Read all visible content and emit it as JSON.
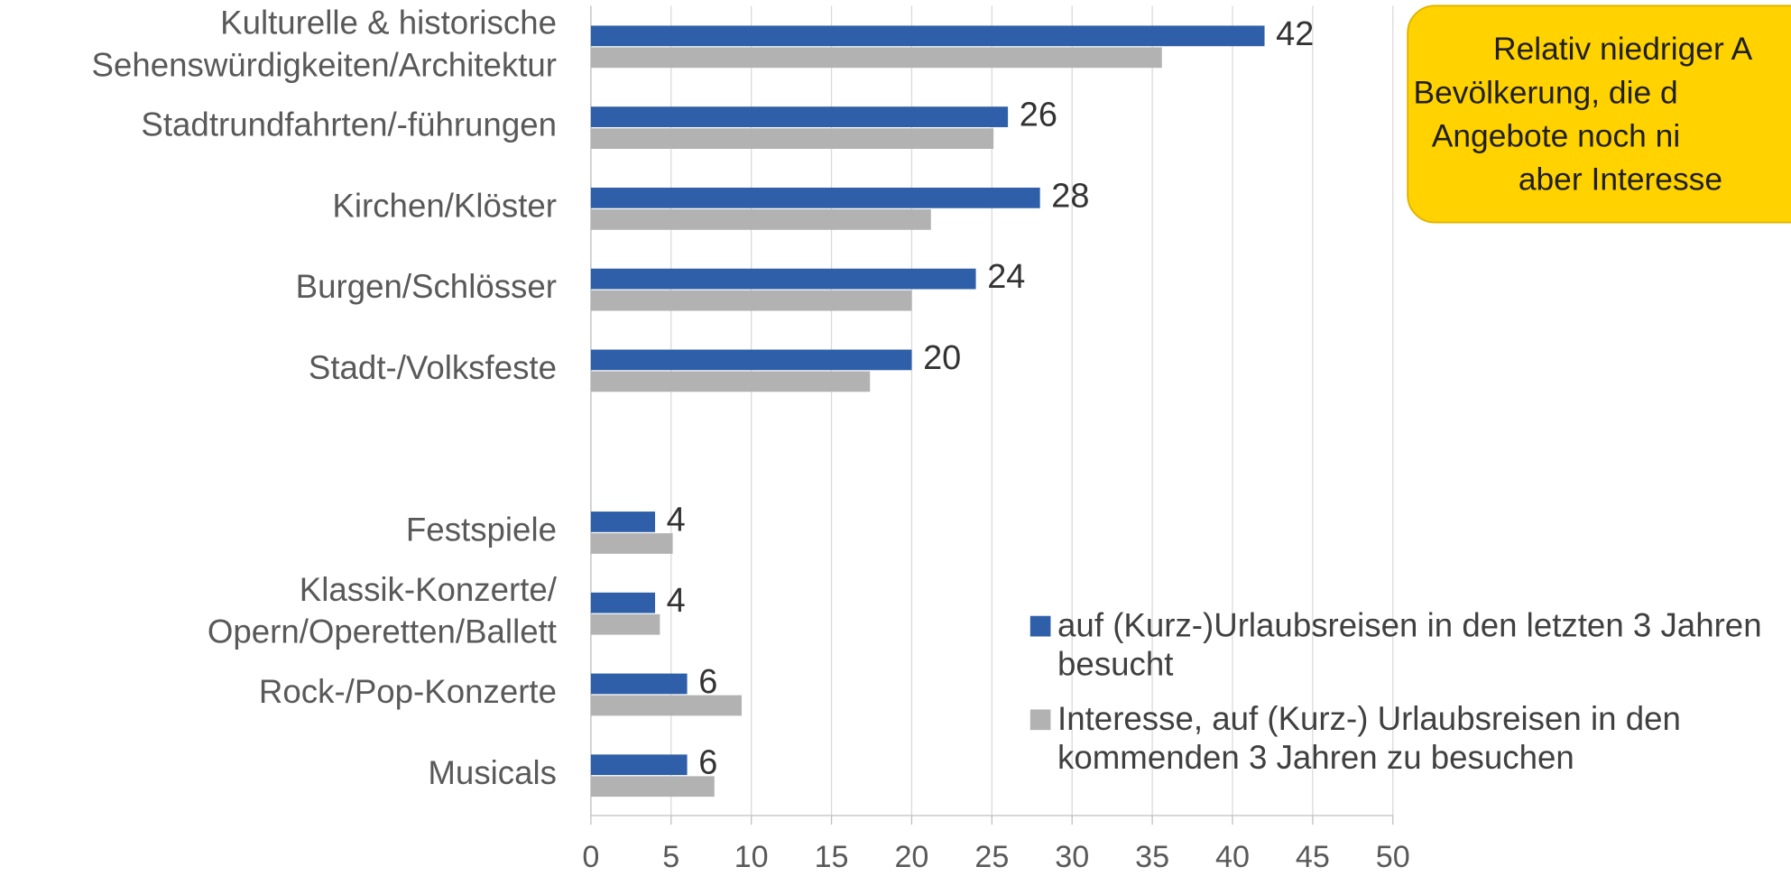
{
  "chart_data": {
    "type": "bar",
    "orientation": "horizontal",
    "categories": [
      [
        "Kulturelle & historische",
        "Sehenswürdigkeiten/Architektur"
      ],
      "Stadtrundfahrten/-führungen",
      "Kirchen/Klöster",
      "Burgen/Schlösser",
      "Stadt-/Volksfeste",
      null,
      "Festspiele",
      [
        "Klassik-Konzerte/",
        "Opern/Operetten/Ballett"
      ],
      "Rock-/Pop-Konzerte",
      "Musicals"
    ],
    "series": [
      {
        "name": "auf (Kurz-)Urlaubsreisen in den letzten 3 Jahren besucht",
        "color": "#2e5fa8",
        "values": [
          42,
          26,
          28,
          24,
          20,
          null,
          4,
          4,
          6,
          6
        ],
        "show_labels": true
      },
      {
        "name": "Interesse, auf (Kurz-) Urlaubsreisen in den kommenden 3 Jahren zu besuchen",
        "color": "#b2b2b2",
        "values": [
          35.6,
          25.1,
          21.2,
          20,
          17.4,
          null,
          5.1,
          4.3,
          9.4,
          7.7
        ],
        "show_labels": false
      }
    ],
    "xlim": [
      0,
      50
    ],
    "xticks": [
      0,
      5,
      10,
      15,
      20,
      25,
      30,
      35,
      40,
      45,
      50
    ],
    "grid": true,
    "annotation": [
      "Relativ niedriger A",
      "Bevölkerung, die d",
      "Angebote noch ni",
      "aber Interesse"
    ]
  }
}
